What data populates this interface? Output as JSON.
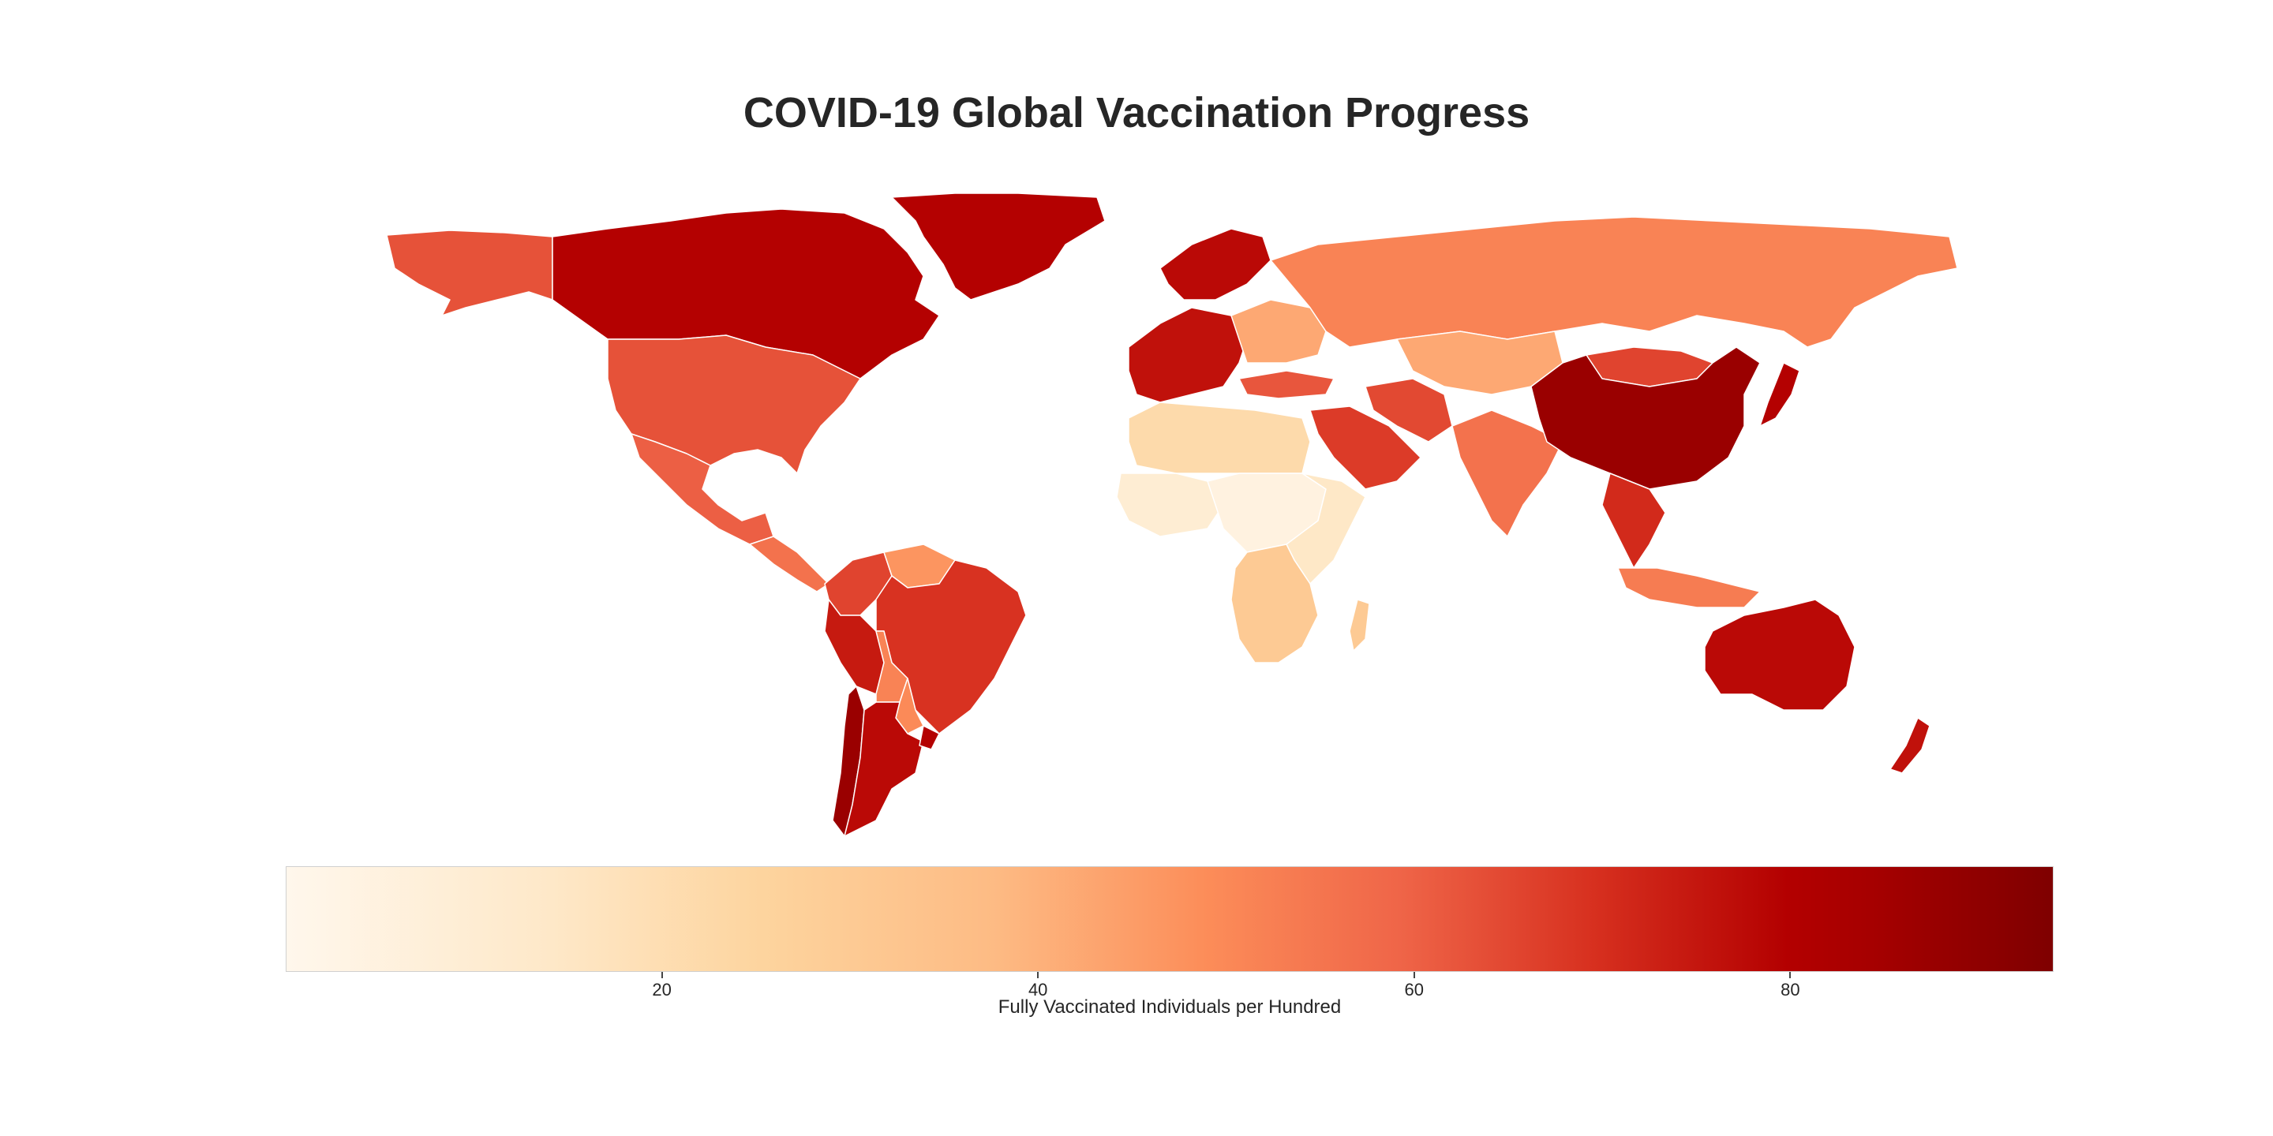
{
  "title": "COVID-19 Global Vaccination Progress",
  "map": {
    "type": "choropleth",
    "metric": "fully_vaccinated_per_hundred",
    "projection": "equirectangular",
    "colormap": "OrRd",
    "regions": [
      {
        "name": "Canada",
        "value": 82
      },
      {
        "name": "United States",
        "value": 63
      },
      {
        "name": "Alaska",
        "value": 63
      },
      {
        "name": "Mexico",
        "value": 60
      },
      {
        "name": "Central America",
        "value": 55
      },
      {
        "name": "Greenland",
        "value": 82
      },
      {
        "name": "Colombia",
        "value": 66
      },
      {
        "name": "Venezuela",
        "value": 45
      },
      {
        "name": "Peru",
        "value": 76
      },
      {
        "name": "Brazil",
        "value": 70
      },
      {
        "name": "Bolivia",
        "value": 50
      },
      {
        "name": "Paraguay",
        "value": 48
      },
      {
        "name": "Chile",
        "value": 88
      },
      {
        "name": "Argentina",
        "value": 80
      },
      {
        "name": "Uruguay",
        "value": 82
      },
      {
        "name": "Northern Europe",
        "value": 80
      },
      {
        "name": "Western Europe",
        "value": 78
      },
      {
        "name": "Eastern Europe",
        "value": 40
      },
      {
        "name": "Russia",
        "value": 50
      },
      {
        "name": "Turkey",
        "value": 62
      },
      {
        "name": "Saudi Arabia",
        "value": 68
      },
      {
        "name": "Iran",
        "value": 65
      },
      {
        "name": "Central Asia",
        "value": 40
      },
      {
        "name": "India",
        "value": 55
      },
      {
        "name": "China",
        "value": 88
      },
      {
        "name": "Mongolia",
        "value": 66
      },
      {
        "name": "Japan",
        "value": 82
      },
      {
        "name": "Southeast Asia",
        "value": 72
      },
      {
        "name": "Indonesia",
        "value": 52
      },
      {
        "name": "Australia",
        "value": 80
      },
      {
        "name": "New Zealand",
        "value": 78
      },
      {
        "name": "North Africa",
        "value": 20
      },
      {
        "name": "West Africa",
        "value": 8
      },
      {
        "name": "Central Africa",
        "value": 4
      },
      {
        "name": "East Africa",
        "value": 12
      },
      {
        "name": "Southern Africa",
        "value": 28
      }
    ]
  },
  "colorbar": {
    "label": "Fully Vaccinated Individuals per Hundred",
    "min": 0,
    "max": 94,
    "ticks": [
      {
        "value": 20,
        "label": "20"
      },
      {
        "value": 40,
        "label": "40"
      },
      {
        "value": 60,
        "label": "60"
      },
      {
        "value": 80,
        "label": "80"
      }
    ],
    "colors": [
      "#fff7ec",
      "#fee8c8",
      "#fdd49e",
      "#fdbb84",
      "#fc8d59",
      "#ef6548",
      "#d7301f",
      "#b30000",
      "#7f0000"
    ]
  }
}
